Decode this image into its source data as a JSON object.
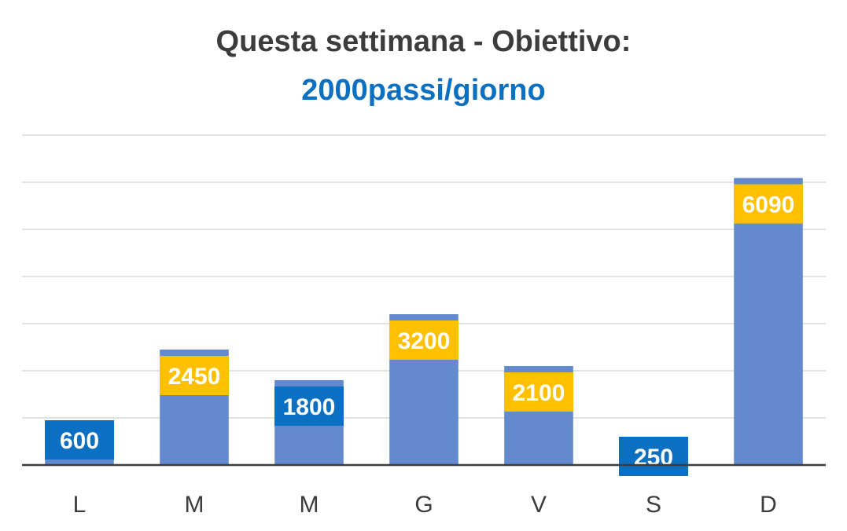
{
  "chart_data": {
    "type": "bar",
    "title": "Questa settimana - Obiettivo:",
    "subtitle": "2000passi/giorno",
    "goal": 2000,
    "categories": [
      "L",
      "M",
      "M",
      "G",
      "V",
      "S",
      "D"
    ],
    "values": [
      600,
      2450,
      1800,
      3200,
      2100,
      250,
      6090
    ],
    "ylim": [
      0,
      7000
    ],
    "grid": true,
    "legend": "none"
  },
  "colors": {
    "bar": "#6389cf",
    "title": "#3c3c3c",
    "subtitle": "#0b6fc2",
    "label_above_goal": "#ffc000",
    "label_below_goal": "#0b6fc2",
    "grid": "#d9d9d9",
    "axis": "#3c3c3c"
  }
}
